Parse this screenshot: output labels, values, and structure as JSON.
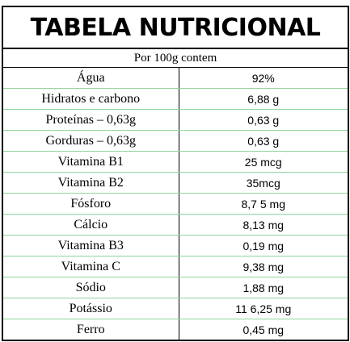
{
  "table": {
    "title": "TABELA NUTRICIONAL",
    "subtitle": "Por 100g contem",
    "rows": [
      {
        "nutrient": "Água",
        "value": "92%"
      },
      {
        "nutrient": "Hidratos e carbono",
        "value": "6,88 g"
      },
      {
        "nutrient": "Proteínas – 0,63g",
        "value": "0,63 g"
      },
      {
        "nutrient": "Gorduras – 0,63g",
        "value": "0,63 g"
      },
      {
        "nutrient": "Vitamina B1",
        "value": "25 mcg"
      },
      {
        "nutrient": "Vitamina B2",
        "value": "35mcg"
      },
      {
        "nutrient": "Fósforo",
        "value": "8,7 5 mg"
      },
      {
        "nutrient": "Cálcio",
        "value": "8,13 mg"
      },
      {
        "nutrient": "Vitamina B3",
        "value": "0,19  mg"
      },
      {
        "nutrient": "Vitamina C",
        "value": "9,38 mg"
      },
      {
        "nutrient": "Sódio",
        "value": "1,88 mg"
      },
      {
        "nutrient": "Potássio",
        "value": "11 6,25 mg"
      },
      {
        "nutrient": "Ferro",
        "value": "0,45 mg"
      }
    ]
  }
}
